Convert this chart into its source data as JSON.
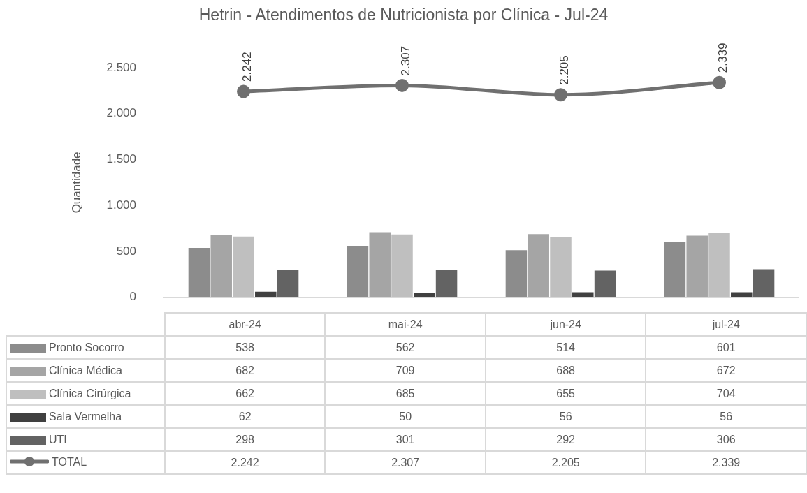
{
  "chart_data": {
    "type": "bar",
    "title": "Hetrin - Atendimentos de Nutricionista por Clínica - Jul-24",
    "ylabel": "Quantidade",
    "categories": [
      "abr-24",
      "mai-24",
      "jun-24",
      "jul-24"
    ],
    "series": [
      {
        "name": "Pronto Socorro",
        "color": "#8c8c8c",
        "values": [
          538,
          562,
          514,
          601
        ]
      },
      {
        "name": "Clínica Médica",
        "color": "#a5a5a5",
        "values": [
          682,
          709,
          688,
          672
        ]
      },
      {
        "name": "Clínica Cirúrgica",
        "color": "#bfbfbf",
        "values": [
          662,
          685,
          655,
          704
        ]
      },
      {
        "name": "Sala Vermelha",
        "color": "#404040",
        "values": [
          62,
          50,
          56,
          56
        ]
      },
      {
        "name": "UTI",
        "color": "#636363",
        "values": [
          298,
          301,
          292,
          306
        ]
      },
      {
        "name": "TOTAL",
        "type": "line",
        "color": "#707070",
        "values": [
          2242,
          2307,
          2205,
          2339
        ],
        "value_labels": [
          "2.242",
          "2.307",
          "2.205",
          "2.339"
        ]
      }
    ],
    "ylim": [
      0,
      2500
    ],
    "yticks": [
      {
        "value": 0,
        "label": "0"
      },
      {
        "value": 500,
        "label": "500"
      },
      {
        "value": 1000,
        "label": "1.000"
      },
      {
        "value": 1500,
        "label": "1.500"
      },
      {
        "value": 2000,
        "label": "2.000"
      },
      {
        "value": 2500,
        "label": "2.500"
      }
    ],
    "grid": false,
    "legend": "bottom",
    "data_labels": true,
    "marker": "circle",
    "line_style": "solid"
  }
}
